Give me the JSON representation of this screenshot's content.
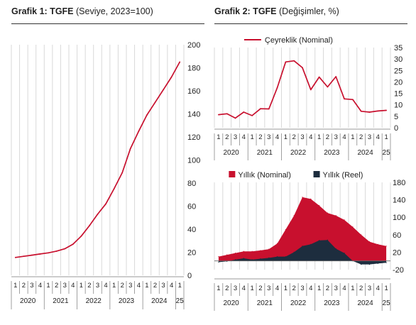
{
  "titles": {
    "c1_bold": "Grafik 1: TGFE",
    "c1_rest": " (Seviye, 2023=100)",
    "c2_bold": "Grafik 2: TGFE",
    "c2_rest": " (Değişimler, %)"
  },
  "colors": {
    "red": "#c8102e",
    "navy": "#1d2d3e",
    "grid": "#d9d9d9"
  },
  "chart_data": [
    {
      "id": "chart1",
      "type": "line",
      "x_quarters": [
        "1",
        "2",
        "3",
        "4",
        "1",
        "2",
        "3",
        "4",
        "1",
        "2",
        "3",
        "4",
        "1",
        "2",
        "3",
        "4",
        "1",
        "2",
        "3",
        "4",
        "1"
      ],
      "x_years": [
        "2020",
        "2021",
        "2022",
        "2023",
        "2024",
        "25"
      ],
      "series": [
        {
          "values": [
            15.5,
            16.5,
            17.5,
            18.5,
            19.5,
            21,
            23,
            27,
            34,
            43,
            53,
            62,
            75,
            89,
            110,
            125,
            139,
            150,
            161,
            172,
            185
          ]
        }
      ],
      "ylim": [
        0,
        200
      ],
      "yticks": [
        0,
        20,
        40,
        60,
        80,
        100,
        120,
        140,
        160,
        180,
        200
      ],
      "grid": "vertical"
    },
    {
      "id": "chart2a",
      "type": "line",
      "x_quarters": [
        "1",
        "2",
        "3",
        "4",
        "1",
        "2",
        "3",
        "4",
        "1",
        "2",
        "3",
        "4",
        "1",
        "2",
        "3",
        "4",
        "1",
        "2",
        "3",
        "4",
        "1"
      ],
      "x_years": [
        "2020",
        "2021",
        "2022",
        "2023",
        "2024",
        "25"
      ],
      "series": [
        {
          "name": "Çeyreklik (Nominal)",
          "values": [
            5.7,
            6.1,
            4.2,
            6.8,
            5.3,
            8.3,
            8.2,
            17.5,
            28.7,
            29.2,
            26.2,
            16.6,
            22.1,
            17.8,
            22.3,
            12.6,
            12.3,
            7.2,
            6.8,
            7.3,
            7.6
          ]
        }
      ],
      "ylim": [
        0,
        35
      ],
      "yticks": [
        0,
        5,
        10,
        15,
        20,
        25,
        30,
        35
      ],
      "legend": "top-center",
      "grid": "vertical"
    },
    {
      "id": "chart2b",
      "type": "area",
      "x_quarters": [
        "1",
        "2",
        "3",
        "4",
        "1",
        "2",
        "3",
        "4",
        "1",
        "2",
        "3",
        "4",
        "1",
        "2",
        "3",
        "4",
        "1",
        "2",
        "3",
        "4",
        "1"
      ],
      "x_years": [
        "2020",
        "2021",
        "2022",
        "2023",
        "2024",
        "25"
      ],
      "series": [
        {
          "name": "Yıllık (Nominal)",
          "values": [
            10,
            14,
            18,
            22,
            22,
            24,
            27,
            40,
            72,
            104,
            146,
            142,
            127,
            110,
            104,
            94,
            78,
            60,
            44,
            38,
            34
          ]
        },
        {
          "name": "Yıllık (Reel)",
          "values": [
            -3,
            -1,
            3,
            6,
            3,
            5,
            7,
            10,
            10,
            20,
            34,
            38,
            47,
            48,
            28,
            18,
            0,
            -8,
            -8,
            -6,
            -4
          ]
        }
      ],
      "ylim": [
        -20,
        180
      ],
      "yticks": [
        -20,
        20,
        60,
        100,
        140,
        180
      ],
      "legend": "top-center",
      "grid": "vertical"
    }
  ]
}
